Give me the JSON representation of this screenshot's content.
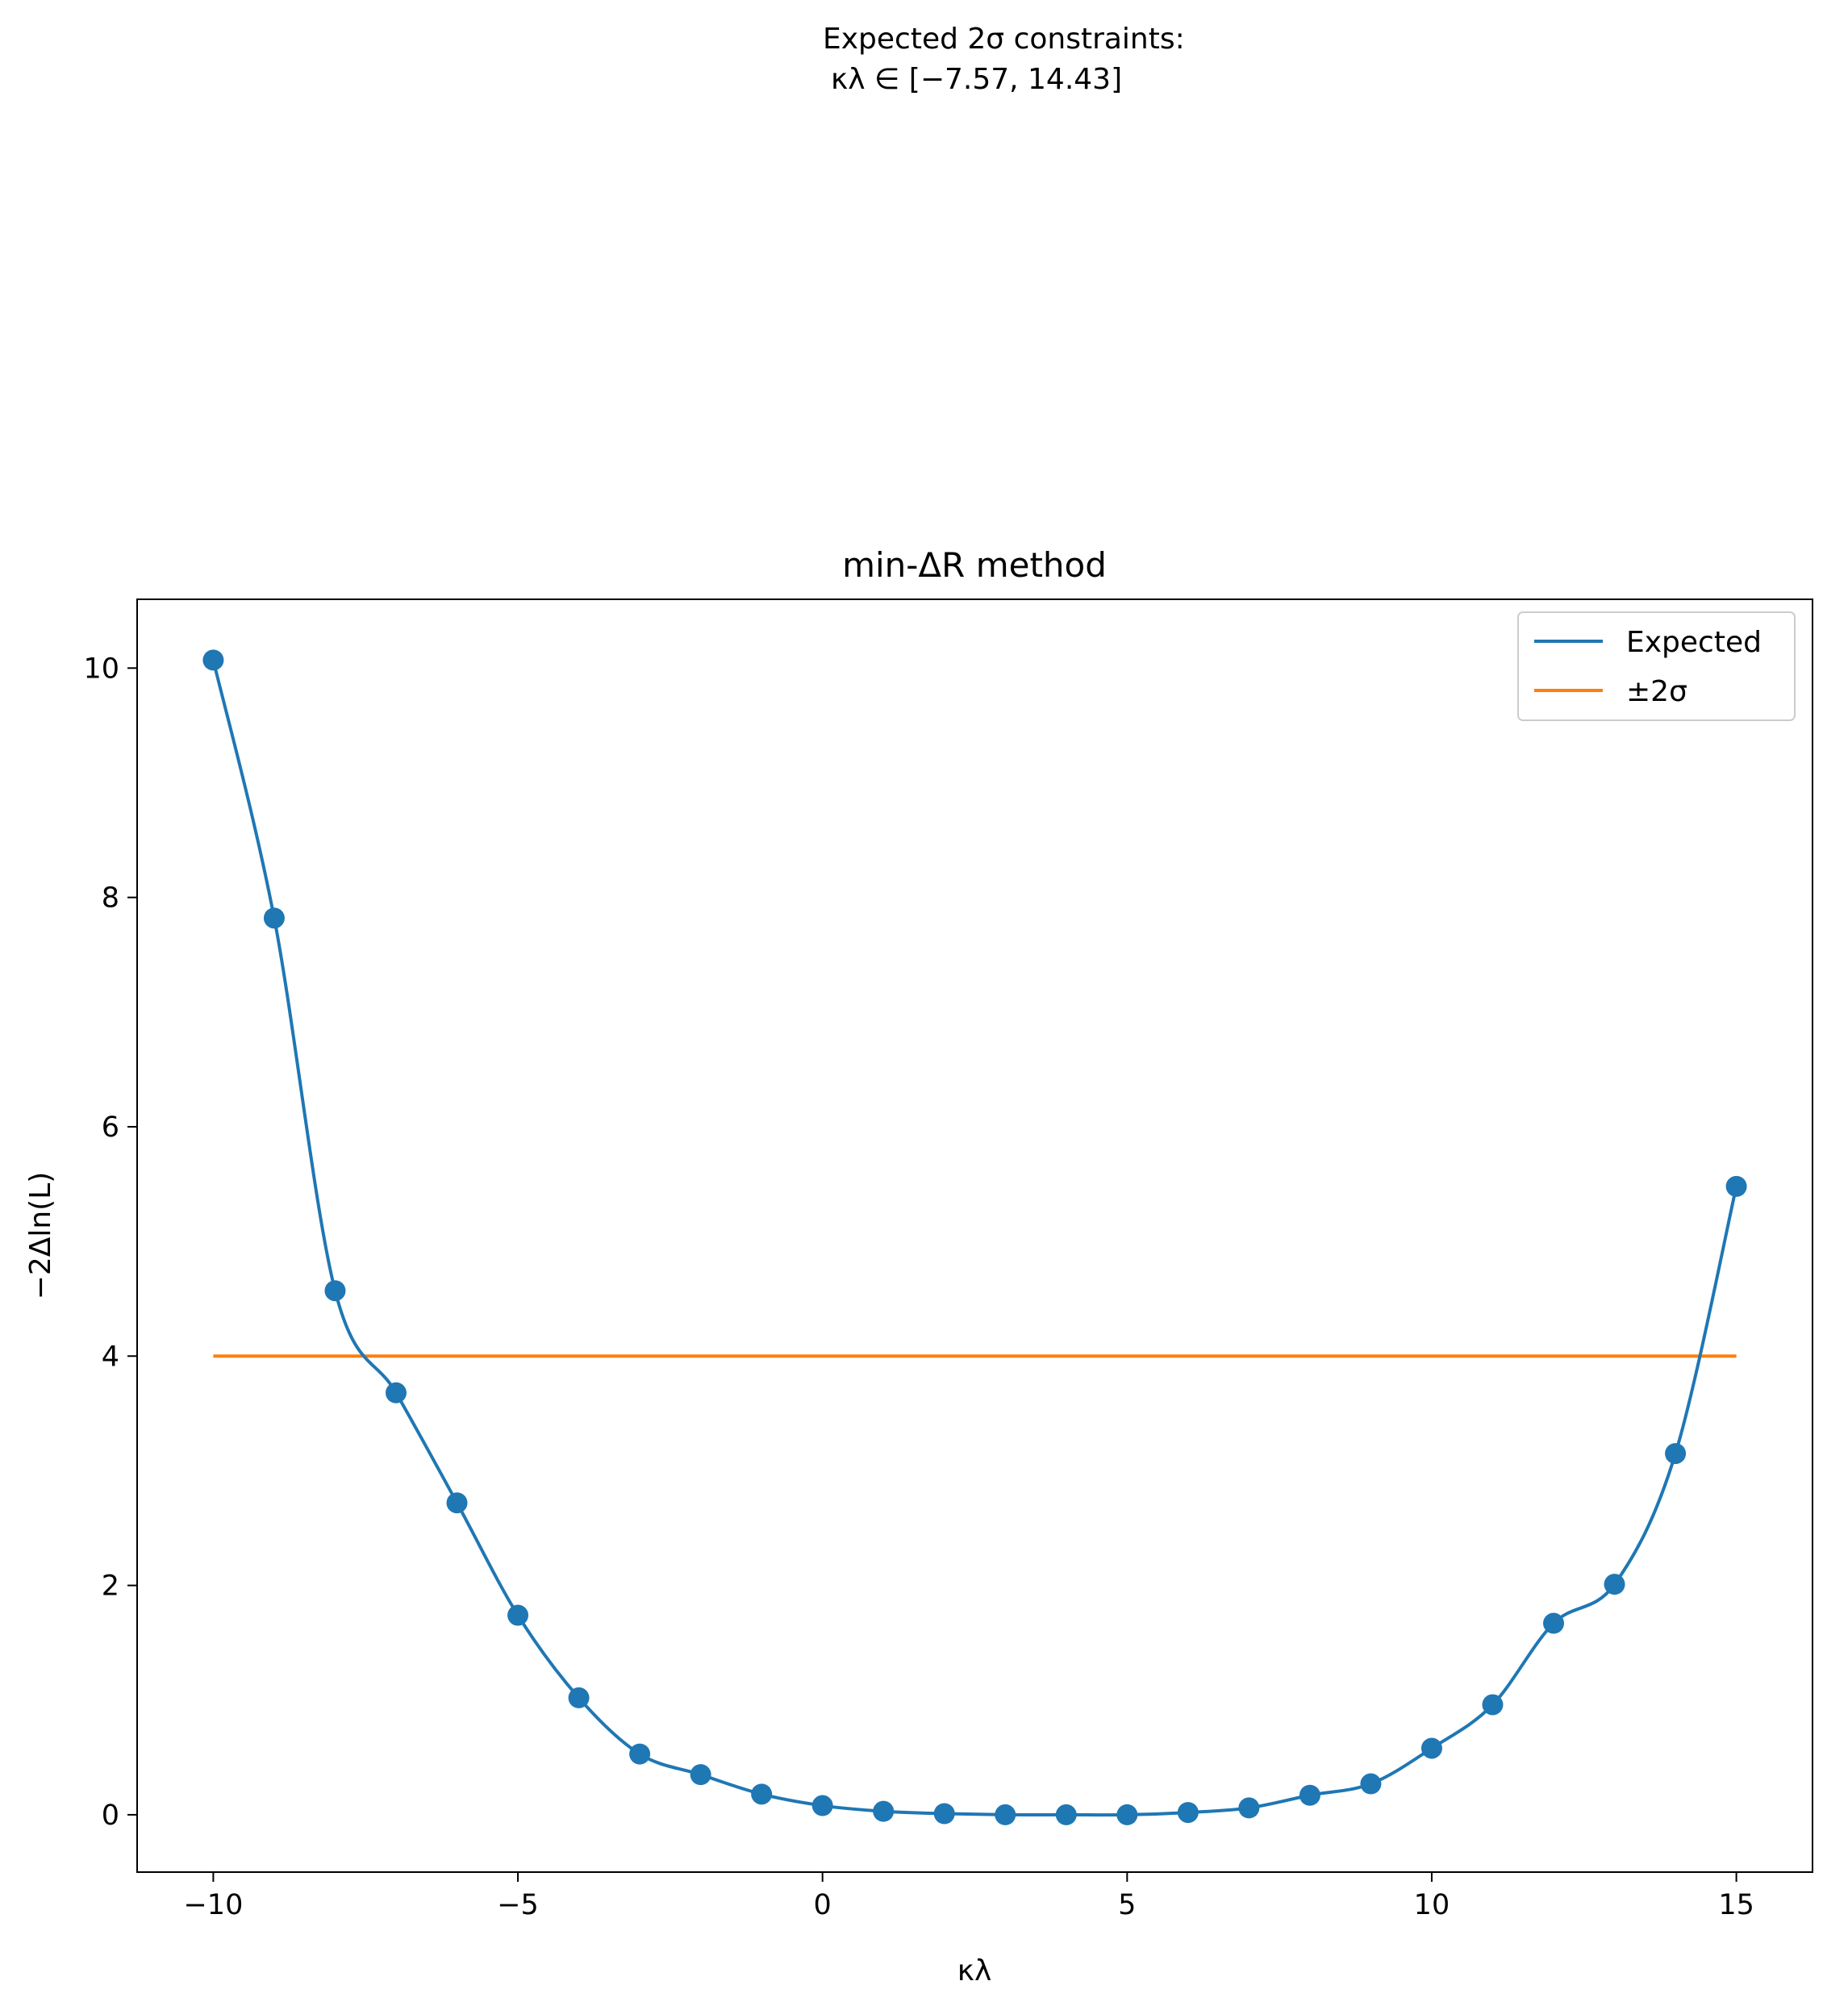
{
  "chart_data": {
    "type": "line",
    "title": "min-ΔR method",
    "annotation": {
      "line1": "Expected 2σ constraints:",
      "line2": "κλ ∈ [−7.57, 14.43]"
    },
    "xlabel": "κλ",
    "ylabel": "−2Δln(L)",
    "xlim": [
      -11.25,
      16.25
    ],
    "ylim": [
      -0.5,
      10.6
    ],
    "xticks": [
      -10,
      -5,
      0,
      5,
      10,
      15
    ],
    "xtick_labels": [
      "−10",
      "−5",
      "0",
      "5",
      "10",
      "15"
    ],
    "yticks": [
      0,
      2,
      4,
      6,
      8,
      10
    ],
    "ytick_labels": [
      "0",
      "2",
      "4",
      "6",
      "8",
      "10"
    ],
    "grid": false,
    "legend_position": "top-right",
    "series": [
      {
        "name": "Expected",
        "color": "#1f77b4",
        "markers": true,
        "x": [
          -10,
          -9,
          -8,
          -7,
          -6,
          -5,
          -4,
          -3,
          -2,
          -1,
          0,
          1,
          2,
          3,
          4,
          5,
          6,
          7,
          8,
          9,
          10,
          11,
          12,
          13,
          14,
          15
        ],
        "y": [
          10.07,
          7.82,
          4.57,
          3.68,
          2.72,
          1.74,
          1.02,
          0.53,
          0.35,
          0.18,
          0.08,
          0.03,
          0.01,
          0.0,
          0.0,
          0.0,
          0.02,
          0.06,
          0.17,
          0.27,
          0.58,
          0.96,
          1.67,
          2.01,
          3.15,
          5.48
        ]
      },
      {
        "name": "±2σ",
        "color": "#ff7f0e",
        "markers": false,
        "x": [
          -10,
          15
        ],
        "y": [
          4,
          4
        ]
      }
    ]
  }
}
